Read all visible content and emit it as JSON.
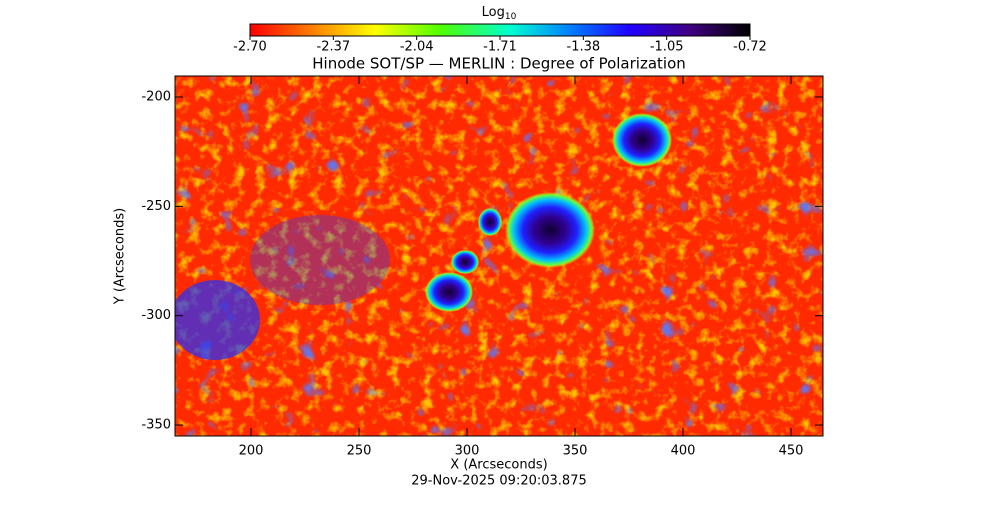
{
  "chart_data": {
    "type": "image",
    "title": "Hinode SOT/SP — MERLIN : Degree of Polarization",
    "colorbar": {
      "label": "Log",
      "label_subscript": "10",
      "lim": [
        -2.7,
        -0.72
      ],
      "ticks": [
        {
          "value": -2.7,
          "label": "-2.70"
        },
        -2.37,
        -2.04,
        -1.71,
        -1.38,
        -1.05,
        -0.72
      ]
    },
    "xlabel": "X (Arcseconds)",
    "ylabel": "Y (Arcseconds)",
    "xlim": [
      164.8,
      464.8
    ],
    "xticks": [
      200,
      250,
      300,
      350,
      400,
      450
    ],
    "ylim": [
      -355,
      -190.4
    ],
    "yticks": [
      -200,
      -250,
      -300,
      -350
    ],
    "footer": "29-Nov-2025 09:20:03.875"
  }
}
